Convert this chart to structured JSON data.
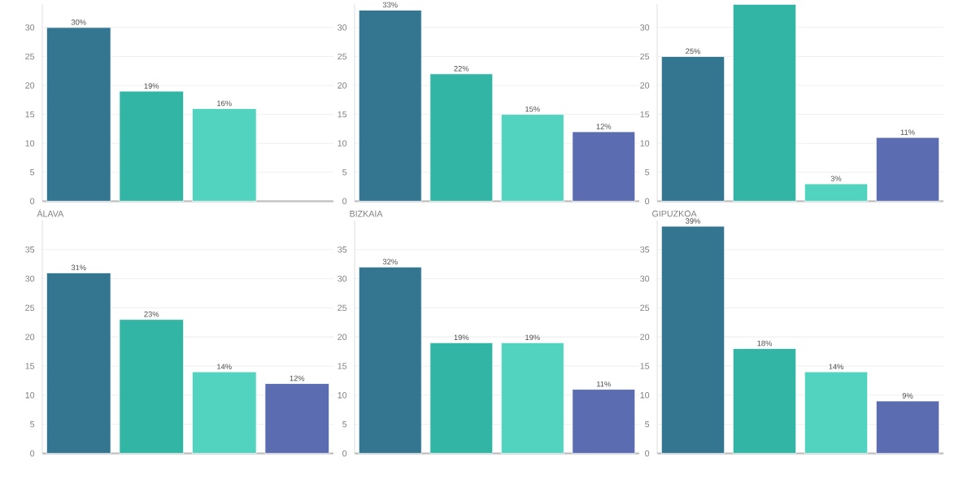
{
  "chart_data": [
    {
      "type": "bar",
      "categories": [
        null,
        null,
        null,
        null
      ],
      "values": [
        30,
        19,
        16,
        null
      ],
      "value_labels": [
        "30%",
        "19%",
        "16%",
        null
      ],
      "colors": [
        "#347590",
        "#33b5a5",
        "#52d3c0",
        "#5b6db0"
      ],
      "ylim": [
        0,
        34
      ],
      "yticks": [
        0,
        5,
        10,
        15,
        20,
        25,
        30
      ],
      "grid": "y",
      "tick_labels": "y"
    },
    {
      "type": "bar",
      "categories": [
        null,
        null,
        null,
        null
      ],
      "values": [
        33,
        22,
        15,
        12
      ],
      "value_labels": [
        "33%",
        "22%",
        "15%",
        "12%"
      ],
      "colors": [
        "#347590",
        "#33b5a5",
        "#52d3c0",
        "#5b6db0"
      ],
      "ylim": [
        0,
        34
      ],
      "yticks": [
        0,
        5,
        10,
        15,
        20,
        25,
        30
      ],
      "grid": "y"
    },
    {
      "type": "bar",
      "categories": [
        null,
        null,
        null,
        null
      ],
      "values": [
        25,
        34,
        3,
        11
      ],
      "value_labels": [
        "25%",
        null,
        "3%",
        "11%"
      ],
      "colors": [
        "#347590",
        "#33b5a5",
        "#52d3c0",
        "#5b6db0"
      ],
      "ylim": [
        0,
        34
      ],
      "yticks": [
        0,
        5,
        10,
        15,
        20,
        25,
        30
      ],
      "grid": "y"
    },
    {
      "type": "bar",
      "title": "ÁLAVA",
      "categories": [
        null,
        null,
        null,
        null
      ],
      "values": [
        31,
        23,
        14,
        12
      ],
      "value_labels": [
        "31%",
        "23%",
        "14%",
        "12%"
      ],
      "colors": [
        "#347590",
        "#33b5a5",
        "#52d3c0",
        "#5b6db0"
      ],
      "ylim": [
        0,
        40
      ],
      "yticks": [
        0,
        5,
        10,
        15,
        20,
        25,
        30,
        35
      ],
      "grid": "y",
      "tick_labels": "y"
    },
    {
      "type": "bar",
      "title": "BIZKAIA",
      "categories": [
        null,
        null,
        null,
        null
      ],
      "values": [
        32,
        19,
        19,
        11
      ],
      "value_labels": [
        "32%",
        "19%",
        "19%",
        "11%"
      ],
      "colors": [
        "#347590",
        "#33b5a5",
        "#52d3c0",
        "#5b6db0"
      ],
      "ylim": [
        0,
        40
      ],
      "yticks": [
        0,
        5,
        10,
        15,
        20,
        25,
        30,
        35
      ],
      "grid": "y"
    },
    {
      "type": "bar",
      "title": "GIPUZKOA",
      "categories": [
        null,
        null,
        null,
        null
      ],
      "values": [
        39,
        18,
        14,
        9
      ],
      "value_labels": [
        "39%",
        "18%",
        "14%",
        "9%"
      ],
      "colors": [
        "#347590",
        "#33b5a5",
        "#52d3c0",
        "#5b6db0"
      ],
      "ylim": [
        0,
        40
      ],
      "yticks": [
        0,
        5,
        10,
        15,
        20,
        25,
        30,
        35
      ],
      "grid": "y"
    }
  ]
}
